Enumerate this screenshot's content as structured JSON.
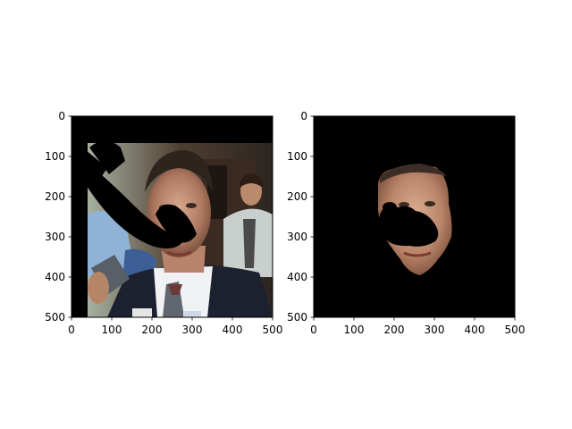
{
  "figure": {
    "background": "#ffffff",
    "axis_color": "#000000"
  },
  "chart_data": [
    {
      "type": "heatmap",
      "description": "image panel (masked photo)",
      "xlim": [
        0,
        500
      ],
      "ylim": [
        500,
        0
      ],
      "x_ticks": [
        "0",
        "100",
        "200",
        "300",
        "400",
        "500"
      ],
      "y_ticks": [
        "0",
        "100",
        "200",
        "300",
        "400",
        "500"
      ],
      "grid": false
    },
    {
      "type": "heatmap",
      "description": "image panel (face-only mask)",
      "xlim": [
        0,
        500
      ],
      "ylim": [
        500,
        0
      ],
      "x_ticks": [
        "0",
        "100",
        "200",
        "300",
        "400",
        "500"
      ],
      "y_ticks": [
        "0",
        "100",
        "200",
        "300",
        "400",
        "500"
      ],
      "grid": false
    }
  ]
}
